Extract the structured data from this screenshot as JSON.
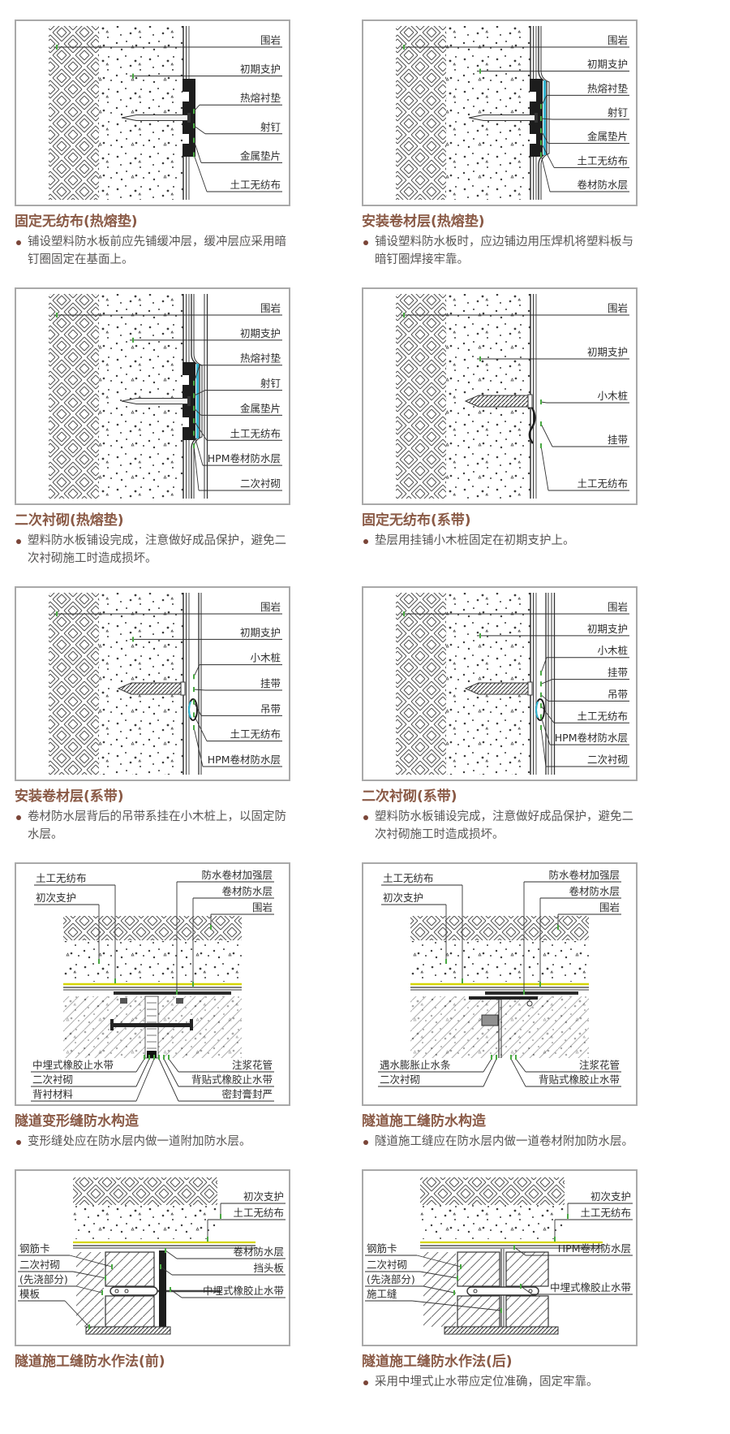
{
  "page": {
    "title_color": "#8a5a46",
    "text_color": "#575554",
    "accent_yellow": "#d6d600",
    "accent_cyan": "#35b6d2",
    "box_border": "#a9a9a9"
  },
  "figures": [
    {
      "title": "固定无纺布(热熔垫)",
      "bullets": [
        "铺设塑料防水板前应先铺缓冲层，缓冲层应采用暗钉圈固定在基面上。"
      ],
      "labels": [
        "围岩",
        "初期支护",
        "热熔衬垫",
        "射钉",
        "金属垫片",
        "土工无纺布"
      ]
    },
    {
      "title": "安装卷材层(热熔垫)",
      "bullets": [
        "铺设塑料防水板时，应边铺边用压焊机将塑料板与暗钉圈焊接牢靠。"
      ],
      "labels": [
        "围岩",
        "初期支护",
        "热熔衬垫",
        "射钉",
        "金属垫片",
        "土工无纺布",
        "卷材防水层"
      ]
    },
    {
      "title": "二次衬砌(热熔垫)",
      "bullets": [
        "塑料防水板铺设完成，注意做好成品保护，避免二次衬砌施工时造成损坏。"
      ],
      "labels": [
        "围岩",
        "初期支护",
        "热熔衬垫",
        "射钉",
        "金属垫片",
        "土工无纺布",
        "HPM卷材防水层",
        "二次衬砌"
      ]
    },
    {
      "title": "固定无纺布(系带)",
      "bullets": [
        "垫层用挂铺小木桩固定在初期支护上。"
      ],
      "labels": [
        "围岩",
        "初期支护",
        "小木桩",
        "挂带",
        "土工无纺布"
      ]
    },
    {
      "title": "安装卷材层(系带)",
      "bullets": [
        "卷材防水层背后的吊带系挂在小木桩上，以固定防水层。"
      ],
      "labels": [
        "围岩",
        "初期支护",
        "小木桩",
        "挂带",
        "吊带",
        "土工无纺布",
        "HPM卷材防水层"
      ]
    },
    {
      "title": "二次衬砌(系带)",
      "bullets": [
        "塑料防水板铺设完成，注意做好成品保护，避免二次衬砌施工时造成损坏。"
      ],
      "labels": [
        "围岩",
        "初期支护",
        "小木桩",
        "挂带",
        "吊带",
        "土工无纺布",
        "HPM卷材防水层",
        "二次衬砌"
      ]
    },
    {
      "title": "隧道变形缝防水构造",
      "bullets": [
        "变形缝处应在防水层内做一道附加防水层。"
      ],
      "labels_top_left": [
        "土工无纺布",
        "初次支护"
      ],
      "labels_top_right": [
        "防水卷材加强层",
        "卷材防水层",
        "围岩"
      ],
      "labels_bottom_left": [
        "中埋式橡胶止水带",
        "二次衬砌",
        "背衬材料"
      ],
      "labels_bottom_right": [
        "注浆花管",
        "背贴式橡胶止水带",
        "密封膏封严"
      ]
    },
    {
      "title": "隧道施工缝防水构造",
      "bullets": [
        "隧道施工缝应在防水层内做一道卷材附加防水层。"
      ],
      "labels_top_left": [
        "土工无纺布",
        "初次支护"
      ],
      "labels_top_right": [
        "防水卷材加强层",
        "卷材防水层",
        "围岩"
      ],
      "labels_bottom_left": [
        "遇水膨胀止水条",
        "二次衬砌"
      ],
      "labels_bottom_right": [
        "注浆花管",
        "背贴式橡胶止水带"
      ]
    },
    {
      "title": "隧道施工缝防水作法(前)",
      "bullets": [],
      "labels_left": [
        "钢筋卡",
        "二次衬砌",
        "(先浇部分)",
        "模板"
      ],
      "labels_right": [
        "初次支护",
        "土工无纺布",
        "卷材防水层",
        "挡头板",
        "中埋式橡胶止水带"
      ]
    },
    {
      "title": "隧道施工缝防水作法(后)",
      "bullets": [
        "采用中埋式止水带应定位准确，固定牢靠。"
      ],
      "labels_left": [
        "钢筋卡",
        "二次衬砌",
        "(先浇部分)",
        "施工缝"
      ],
      "labels_right": [
        "初次支护",
        "土工无纺布",
        "HPM卷材防水层",
        "中埋式橡胶止水带"
      ]
    }
  ]
}
